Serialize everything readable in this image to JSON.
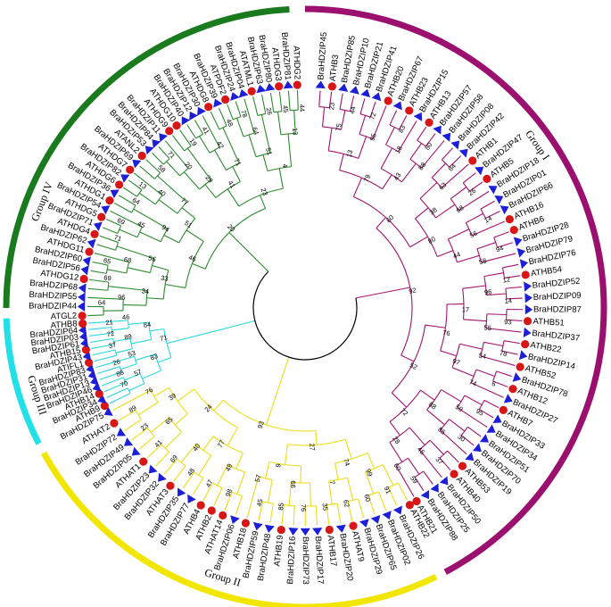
{
  "groups": [
    {
      "id": "I",
      "label": "Group I",
      "color": "#9b0f6e",
      "branch_color": "#a1146f"
    },
    {
      "id": "II",
      "label": "Group II",
      "color": "#f2e600",
      "branch_color": "#eedc12"
    },
    {
      "id": "III",
      "label": "Group III",
      "color": "#22e0e8",
      "branch_color": "#29d6df"
    },
    {
      "id": "IV",
      "label": "Group IV",
      "color": "#1a7a1e",
      "branch_color": "#2d8a2f"
    }
  ],
  "markers": {
    "brassica": "triangle",
    "arabidopsis": "circle",
    "triangle_color": "#1d1fd8",
    "circle_color": "#d81616"
  },
  "leaves": [
    {
      "label": "BraHDZIP45",
      "group": "I"
    },
    {
      "label": "ATHB3",
      "group": "I"
    },
    {
      "label": "BraHDZIP85",
      "group": "I"
    },
    {
      "label": "BraHDZIP10",
      "group": "I"
    },
    {
      "label": "BraHDZIP21",
      "group": "I"
    },
    {
      "label": "BraHDZIP41",
      "group": "I"
    },
    {
      "label": "ATHB20",
      "group": "I"
    },
    {
      "label": "BraHDZIP67",
      "group": "I"
    },
    {
      "label": "ATHB23",
      "group": "I"
    },
    {
      "label": "BraHDZIP15",
      "group": "I"
    },
    {
      "label": "ATHB13",
      "group": "I"
    },
    {
      "label": "BraHDZIP57",
      "group": "I"
    },
    {
      "label": "BraHDZIP58",
      "group": "I"
    },
    {
      "label": "BraHDZIP08",
      "group": "I"
    },
    {
      "label": "BraHDZIP42",
      "group": "I"
    },
    {
      "label": "ATHB1",
      "group": "I"
    },
    {
      "label": "BraHDZIP47",
      "group": "I"
    },
    {
      "label": "ATHB5",
      "group": "I"
    },
    {
      "label": "BraHDZIP18",
      "group": "I"
    },
    {
      "label": "BraHDZIP01",
      "group": "I"
    },
    {
      "label": "BraHDZIP66",
      "group": "I"
    },
    {
      "label": "ATHB16",
      "group": "I"
    },
    {
      "label": "ATHB6",
      "group": "I"
    },
    {
      "label": "BraHDZIP28",
      "group": "I"
    },
    {
      "label": "BraHDZIP79",
      "group": "I"
    },
    {
      "label": "BraHDZIP76",
      "group": "I"
    },
    {
      "label": "ATHB54",
      "group": "I"
    },
    {
      "label": "BraHDZIP52",
      "group": "I"
    },
    {
      "label": "BraHDZIP09",
      "group": "I"
    },
    {
      "label": "BraHDZIP87",
      "group": "I"
    },
    {
      "label": "ATHB51",
      "group": "I"
    },
    {
      "label": "BraHDZIP37",
      "group": "I"
    },
    {
      "label": "ATHB22",
      "group": "I"
    },
    {
      "label": "BraHDZIP14",
      "group": "I"
    },
    {
      "label": "ATHB52",
      "group": "I"
    },
    {
      "label": "BraHDZIP78",
      "group": "I"
    },
    {
      "label": "ATHB12",
      "group": "I"
    },
    {
      "label": "BraHDZIP27",
      "group": "I"
    },
    {
      "label": "ATHB7",
      "group": "I"
    },
    {
      "label": "BraHDZIP33",
      "group": "I"
    },
    {
      "label": "BraHDZIP34",
      "group": "I"
    },
    {
      "label": "BraHDZIP51",
      "group": "I"
    },
    {
      "label": "BraHDZIP70",
      "group": "I"
    },
    {
      "label": "BraHDZIP19",
      "group": "I"
    },
    {
      "label": "ATHB53",
      "group": "I"
    },
    {
      "label": "ATHB40",
      "group": "I"
    },
    {
      "label": "BraHDZIP50",
      "group": "I"
    },
    {
      "label": "BraHDZIP25",
      "group": "I"
    },
    {
      "label": "BraHDZIP88",
      "group": "I"
    },
    {
      "label": "ATHB21",
      "group": "I"
    },
    {
      "label": "ATHB22",
      "group": "II"
    },
    {
      "label": "BraHDZIP26",
      "group": "II"
    },
    {
      "label": "BraHDZIP02",
      "group": "II"
    },
    {
      "label": "BraHDZIP65",
      "group": "II"
    },
    {
      "label": "BraHDZIP29",
      "group": "II"
    },
    {
      "label": "ATHAT9",
      "group": "II"
    },
    {
      "label": "BraHDZIP20",
      "group": "II"
    },
    {
      "label": "ATHB17",
      "group": "II"
    },
    {
      "label": "BraHDZIP17",
      "group": "II"
    },
    {
      "label": "BraHDZIP73",
      "group": "II"
    },
    {
      "label": "BraHDZIP16",
      "group": "II"
    },
    {
      "label": "ATHB19",
      "group": "II"
    },
    {
      "label": "BraHDZIP48",
      "group": "II"
    },
    {
      "label": "BraHDZIP59",
      "group": "II"
    },
    {
      "label": "ATHB18",
      "group": "II"
    },
    {
      "label": "BraHDZIP06",
      "group": "II"
    },
    {
      "label": "ATHAT14",
      "group": "II"
    },
    {
      "label": "ATHB2",
      "group": "II"
    },
    {
      "label": "ATHB4",
      "group": "II"
    },
    {
      "label": "BraHDZIP77",
      "group": "II"
    },
    {
      "label": "BraHDZIP35",
      "group": "II"
    },
    {
      "label": "ATHAT3",
      "group": "II"
    },
    {
      "label": "BraHDZIP32",
      "group": "II"
    },
    {
      "label": "BraHDZIP23",
      "group": "II"
    },
    {
      "label": "ATHAT1",
      "group": "II"
    },
    {
      "label": "BraHDZIP05",
      "group": "II"
    },
    {
      "label": "BraHDZIP49",
      "group": "II"
    },
    {
      "label": "BraHDZIP72",
      "group": "II"
    },
    {
      "label": "ATHAT2",
      "group": "II"
    },
    {
      "label": "BraHDZIP75",
      "group": "II"
    },
    {
      "label": "ATHB9",
      "group": "III"
    },
    {
      "label": "BraHDZIP34",
      "group": "III"
    },
    {
      "label": "ATHB14",
      "group": "III"
    },
    {
      "label": "BraHDZIP46",
      "group": "III"
    },
    {
      "label": "BraHDZIP13",
      "group": "III"
    },
    {
      "label": "BraHDZIP31",
      "group": "III"
    },
    {
      "label": "BraHDZIP83",
      "group": "III"
    },
    {
      "label": "ATIFL1",
      "group": "III"
    },
    {
      "label": "BraHDZIP43",
      "group": "III"
    },
    {
      "label": "ATHB15",
      "group": "III"
    },
    {
      "label": "BraHDZIP61",
      "group": "III"
    },
    {
      "label": "BraHDZIP03",
      "group": "III"
    },
    {
      "label": "BraHDZIP64",
      "group": "III"
    },
    {
      "label": "ATHB8",
      "group": "III"
    },
    {
      "label": "ATGL2",
      "group": "IV"
    },
    {
      "label": "BraHDZIP44",
      "group": "IV"
    },
    {
      "label": "BraHDZIP55",
      "group": "IV"
    },
    {
      "label": "BraHDZIP68",
      "group": "IV"
    },
    {
      "label": "ATHDG12",
      "group": "IV"
    },
    {
      "label": "BraHDZIP56",
      "group": "IV"
    },
    {
      "label": "BraHDZIP60",
      "group": "IV"
    },
    {
      "label": "ATHDG11",
      "group": "IV"
    },
    {
      "label": "BraHDZIP62",
      "group": "IV"
    },
    {
      "label": "ATHDG4",
      "group": "IV"
    },
    {
      "label": "BraHDZIP71",
      "group": "IV"
    },
    {
      "label": "ATHDG5",
      "group": "IV"
    },
    {
      "label": "BraHDZIP54",
      "group": "IV"
    },
    {
      "label": "ATHDG1",
      "group": "IV"
    },
    {
      "label": "BraHDZIP36",
      "group": "IV"
    },
    {
      "label": "ATHDG6",
      "group": "IV"
    },
    {
      "label": "BraHDZIP82",
      "group": "IV"
    },
    {
      "label": "ATHDG7",
      "group": "IV"
    },
    {
      "label": "BraHDZIP69",
      "group": "IV"
    },
    {
      "label": "ATANL2",
      "group": "IV"
    },
    {
      "label": "BraHDZIP53",
      "group": "IV"
    },
    {
      "label": "BraHDZIP84",
      "group": "IV"
    },
    {
      "label": "BraHDZIP11",
      "group": "IV"
    },
    {
      "label": "ATHDG9",
      "group": "IV"
    },
    {
      "label": "ATHDG10",
      "group": "IV"
    },
    {
      "label": "BraHDZIP40",
      "group": "IV"
    },
    {
      "label": "BraHDZIP12",
      "group": "IV"
    },
    {
      "label": "BraHDZIP30",
      "group": "IV"
    },
    {
      "label": "ATHDG8",
      "group": "IV"
    },
    {
      "label": "BraHDZIP39",
      "group": "IV"
    },
    {
      "label": "ATPDF2",
      "group": "IV"
    },
    {
      "label": "BraHDZIP24",
      "group": "IV"
    },
    {
      "label": "BraHDZIP04",
      "group": "IV"
    },
    {
      "label": "ATATML1",
      "group": "IV"
    },
    {
      "label": "BraHDZIP63",
      "group": "IV"
    },
    {
      "label": "BraHDZIP80",
      "group": "IV"
    },
    {
      "label": "ATHDG3",
      "group": "IV"
    },
    {
      "label": "BraHDZIP81",
      "group": "IV"
    },
    {
      "label": "ATHDG2",
      "group": "IV"
    }
  ],
  "bootstrap_values": [
    "23",
    "44",
    "75",
    "72",
    "95",
    "13",
    "83",
    "18",
    "80",
    "88",
    "43",
    "79",
    "84",
    "63",
    "26",
    "68",
    "38",
    "14",
    "56",
    "94",
    "58",
    "44",
    "80",
    "60",
    "12",
    "14",
    "96",
    "93",
    "55",
    "17",
    "78",
    "54",
    "6",
    "74",
    "97",
    "76",
    "95",
    "59",
    "30",
    "85",
    "88",
    "37",
    "45",
    "59",
    "60",
    "28",
    "72",
    "52",
    "92",
    "91",
    "60",
    "99",
    "62",
    "35",
    "7",
    "74",
    "76",
    "85",
    "99",
    "45",
    "57",
    "9",
    "27",
    "98",
    "47",
    "49",
    "48",
    "69",
    "40",
    "77",
    "41",
    "23",
    "65",
    "89",
    "76",
    "39",
    "24",
    "93",
    "70",
    "88",
    "57",
    "26",
    "53",
    "83",
    "37",
    "72",
    "89",
    "21",
    "46",
    "84",
    "71",
    "64",
    "96",
    "69",
    "34",
    "65",
    "68",
    "71",
    "56",
    "33",
    "69",
    "45",
    "64",
    "94",
    "13",
    "40",
    "58",
    "77",
    "51",
    "46",
    "71",
    "20",
    "19",
    "29",
    "41",
    "42",
    "48",
    "71",
    "41",
    "78",
    "64",
    "26",
    "51",
    "45",
    "44",
    "13",
    "4",
    "23",
    "20",
    "9",
    "3",
    "92",
    "74",
    "96"
  ]
}
